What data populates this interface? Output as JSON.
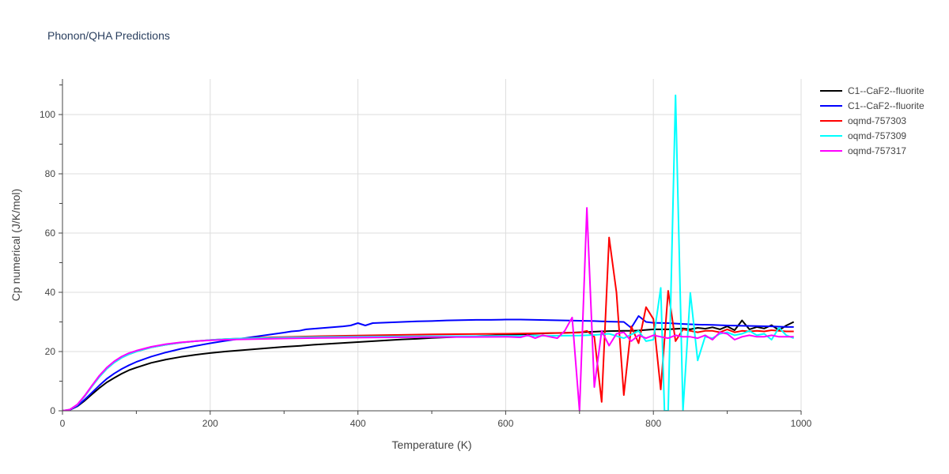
{
  "chart_data": {
    "type": "line",
    "title": "Phonon/QHA Predictions",
    "xlabel": "Temperature (K)",
    "ylabel": "Cp numerical (J/K/mol)",
    "xlim": [
      0,
      1000
    ],
    "ylim": [
      0,
      112
    ],
    "xticks": [
      0,
      200,
      400,
      600,
      800,
      1000
    ],
    "yticks": [
      0,
      20,
      40,
      60,
      80,
      100
    ],
    "grid": true,
    "legend_position": "right",
    "series": [
      {
        "name": "C1--CaF2--fluorite",
        "color": "#000000",
        "x": [
          0,
          10,
          20,
          30,
          40,
          50,
          60,
          70,
          80,
          90,
          100,
          120,
          140,
          160,
          180,
          200,
          220,
          240,
          260,
          280,
          300,
          320,
          340,
          360,
          380,
          400,
          420,
          440,
          460,
          480,
          500,
          520,
          540,
          560,
          580,
          600,
          620,
          640,
          660,
          680,
          700,
          710,
          720,
          740,
          760,
          770,
          780,
          790,
          800,
          820,
          840,
          850,
          860,
          870,
          880,
          890,
          900,
          910,
          920,
          930,
          940,
          950,
          960,
          970,
          980,
          990
        ],
        "y": [
          0,
          0.3,
          1.5,
          3.4,
          5.6,
          7.7,
          9.6,
          11.1,
          12.5,
          13.7,
          14.6,
          16.2,
          17.3,
          18.2,
          18.9,
          19.5,
          20.0,
          20.4,
          20.8,
          21.2,
          21.6,
          21.9,
          22.3,
          22.6,
          22.9,
          23.2,
          23.5,
          23.8,
          24.1,
          24.3,
          24.6,
          24.8,
          25.0,
          25.2,
          25.4,
          25.6,
          25.8,
          26.0,
          26.2,
          26.3,
          26.5,
          26.6,
          26.7,
          26.9,
          27.0,
          27.0,
          27.1,
          27.3,
          27.5,
          27.5,
          27.8,
          27.5,
          28.0,
          27.7,
          28.2,
          27.5,
          28.5,
          27.2,
          30.5,
          27.5,
          28.3,
          27.8,
          28.9,
          27.2,
          28.8,
          30.0
        ]
      },
      {
        "name": "C1--CaF2--fluorite",
        "color": "#0000ff",
        "x": [
          0,
          10,
          20,
          30,
          40,
          50,
          60,
          70,
          80,
          90,
          100,
          120,
          140,
          160,
          180,
          200,
          220,
          240,
          260,
          280,
          300,
          310,
          320,
          330,
          340,
          360,
          380,
          390,
          400,
          410,
          420,
          440,
          460,
          480,
          500,
          520,
          540,
          560,
          580,
          600,
          620,
          640,
          660,
          680,
          700,
          720,
          740,
          760,
          770,
          780,
          790,
          800,
          820,
          840,
          860,
          880,
          900,
          920,
          940,
          960,
          980,
          990
        ],
        "y": [
          0,
          0.3,
          1.6,
          3.8,
          6.2,
          8.6,
          10.8,
          12.6,
          14.1,
          15.4,
          16.5,
          18.3,
          19.7,
          20.9,
          21.9,
          22.8,
          23.6,
          24.3,
          25.0,
          25.7,
          26.4,
          26.8,
          27.0,
          27.5,
          27.7,
          28.1,
          28.5,
          28.8,
          29.6,
          28.8,
          29.6,
          29.8,
          30.0,
          30.2,
          30.3,
          30.5,
          30.6,
          30.7,
          30.7,
          30.8,
          30.8,
          30.7,
          30.6,
          30.5,
          30.4,
          30.3,
          30.1,
          30.0,
          28.0,
          32.0,
          30.0,
          29.7,
          29.6,
          29.3,
          29.1,
          29.0,
          28.8,
          28.7,
          28.6,
          28.5,
          28.3,
          28.3
        ]
      },
      {
        "name": "oqmd-757303",
        "color": "#ff0000",
        "x": [
          0,
          10,
          20,
          30,
          40,
          50,
          60,
          70,
          80,
          90,
          100,
          120,
          140,
          160,
          180,
          200,
          220,
          240,
          260,
          280,
          300,
          350,
          400,
          450,
          500,
          550,
          600,
          650,
          700,
          710,
          720,
          730,
          740,
          750,
          760,
          770,
          780,
          790,
          800,
          810,
          820,
          830,
          840,
          850,
          860,
          870,
          880,
          890,
          900,
          910,
          920,
          930,
          940,
          950,
          960,
          970,
          980,
          990
        ],
        "y": [
          0,
          0.4,
          2.0,
          4.9,
          8.3,
          11.5,
          14.2,
          16.3,
          17.9,
          19.1,
          20.0,
          21.4,
          22.3,
          23.0,
          23.5,
          23.9,
          24.2,
          24.4,
          24.6,
          24.8,
          24.9,
          25.2,
          25.4,
          25.6,
          25.8,
          25.9,
          26.0,
          26.2,
          26.4,
          27.0,
          25.0,
          3.0,
          58.5,
          40.0,
          5.3,
          28.5,
          22.8,
          35.0,
          31.0,
          7.2,
          40.5,
          23.5,
          27.5,
          27.0,
          26.5,
          27.0,
          27.0,
          26.5,
          27.5,
          26.5,
          27.0,
          26.8,
          27.0,
          26.8,
          27.2,
          27.0,
          26.8,
          26.8
        ]
      },
      {
        "name": "oqmd-757309",
        "color": "#00ffff",
        "x": [
          0,
          10,
          20,
          30,
          40,
          50,
          60,
          70,
          80,
          90,
          100,
          120,
          140,
          160,
          180,
          200,
          220,
          240,
          260,
          280,
          300,
          350,
          400,
          450,
          500,
          550,
          600,
          650,
          700,
          720,
          740,
          760,
          780,
          790,
          800,
          810,
          815,
          820,
          830,
          840,
          850,
          860,
          870,
          880,
          890,
          900,
          910,
          920,
          930,
          940,
          950,
          960,
          970,
          980,
          990
        ],
        "y": [
          0,
          0.4,
          2.0,
          4.9,
          8.3,
          11.5,
          14.2,
          16.3,
          17.9,
          19.1,
          20.0,
          21.4,
          22.3,
          23.0,
          23.5,
          23.9,
          24.2,
          24.4,
          24.5,
          24.6,
          24.7,
          24.9,
          25.0,
          25.1,
          25.2,
          25.2,
          25.3,
          25.3,
          25.4,
          25.6,
          26.0,
          24.5,
          27.0,
          23.5,
          24.0,
          41.5,
          0,
          0,
          106.5,
          0,
          39.8,
          17.0,
          25.0,
          24.5,
          26.0,
          26.5,
          25.5,
          26.0,
          27.0,
          25.5,
          26.0,
          24.0,
          28.0,
          25.5,
          24.5
        ]
      },
      {
        "name": "oqmd-757317",
        "color": "#ff00ff",
        "x": [
          0,
          10,
          20,
          30,
          40,
          50,
          60,
          70,
          80,
          90,
          100,
          120,
          140,
          160,
          180,
          200,
          220,
          240,
          260,
          280,
          300,
          350,
          400,
          450,
          500,
          550,
          600,
          620,
          630,
          640,
          650,
          660,
          670,
          680,
          690,
          700,
          710,
          720,
          730,
          740,
          750,
          760,
          770,
          780,
          790,
          800,
          810,
          820,
          830,
          840,
          850,
          860,
          870,
          880,
          890,
          900,
          910,
          920,
          930,
          940,
          950,
          960,
          970,
          980,
          990
        ],
        "y": [
          0,
          0.4,
          2.1,
          5.1,
          8.6,
          11.9,
          14.6,
          16.7,
          18.3,
          19.5,
          20.3,
          21.6,
          22.5,
          23.1,
          23.5,
          23.8,
          24.0,
          24.1,
          24.2,
          24.3,
          24.4,
          24.6,
          24.7,
          24.8,
          24.9,
          24.9,
          25.0,
          24.8,
          25.5,
          24.5,
          25.5,
          25.0,
          24.5,
          27.0,
          31.5,
          0,
          68.5,
          8.0,
          27.0,
          22.0,
          26.0,
          26.5,
          23.5,
          25.5,
          24.5,
          25.5,
          25.0,
          24.5,
          25.5,
          25.0,
          25.0,
          24.5,
          25.5,
          24.0,
          26.5,
          26.0,
          24.0,
          25.0,
          25.5,
          25.0,
          25.0,
          25.5,
          25.0,
          25.0,
          25.0
        ]
      }
    ]
  }
}
